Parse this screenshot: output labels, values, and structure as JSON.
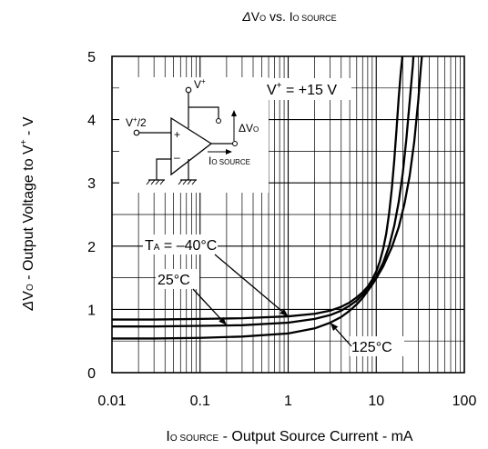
{
  "chart_data": {
    "type": "line",
    "title": {
      "delta": "Δ",
      "v": "V",
      "vsub": "O",
      "vs": " vs. I",
      "isub": "O SOURCE"
    },
    "xlabel": {
      "i": "I",
      "isub": "O SOURCE",
      "rest": " - Output Source Current - mA"
    },
    "ylabel": {
      "delta": "Δ",
      "v": "V",
      "vsub": "O",
      "rest": " - Output Voltage to V",
      "sup": "+",
      "tail": " - V"
    },
    "x_scale": "log",
    "xlim": [
      0.01,
      100
    ],
    "ylim": [
      0,
      5
    ],
    "x_ticks": [
      {
        "value": 0.01,
        "label": "0.01"
      },
      {
        "value": 0.1,
        "label": "0.1"
      },
      {
        "value": 1,
        "label": "1"
      },
      {
        "value": 10,
        "label": "10"
      },
      {
        "value": 100,
        "label": "100"
      }
    ],
    "y_ticks": [
      {
        "value": 0,
        "label": "0"
      },
      {
        "value": 1,
        "label": "1"
      },
      {
        "value": 2,
        "label": "2"
      },
      {
        "value": 3,
        "label": "3"
      },
      {
        "value": 4,
        "label": "4"
      },
      {
        "value": 5,
        "label": "5"
      }
    ],
    "grid": true,
    "series": [
      {
        "name": "T_A = -40°C",
        "x": [
          0.01,
          0.03,
          0.1,
          0.3,
          1,
          2,
          3,
          4,
          5,
          6,
          7,
          8,
          9,
          10,
          11,
          12,
          13,
          14,
          15,
          16,
          17,
          18,
          19,
          20,
          21
        ],
        "y": [
          0.84,
          0.84,
          0.85,
          0.86,
          0.89,
          0.93,
          0.98,
          1.04,
          1.11,
          1.19,
          1.27,
          1.36,
          1.47,
          1.6,
          1.76,
          1.96,
          2.2,
          2.52,
          2.9,
          3.35,
          3.85,
          4.35,
          4.75,
          5.05,
          5.3
        ]
      },
      {
        "name": "25°C",
        "x": [
          0.01,
          0.03,
          0.1,
          0.3,
          1,
          2,
          3,
          4,
          5,
          6,
          7,
          8,
          9,
          10,
          12,
          14,
          16,
          18,
          20,
          22,
          24,
          26,
          27
        ],
        "y": [
          0.73,
          0.73,
          0.74,
          0.75,
          0.79,
          0.85,
          0.91,
          0.98,
          1.06,
          1.14,
          1.23,
          1.32,
          1.42,
          1.52,
          1.74,
          2.0,
          2.32,
          2.7,
          3.15,
          3.7,
          4.3,
          4.85,
          5.2
        ]
      },
      {
        "name": "125°C",
        "x": [
          0.01,
          0.03,
          0.1,
          0.3,
          1,
          2,
          3,
          4,
          5,
          6,
          7,
          8,
          9,
          10,
          12,
          15,
          18,
          21,
          24,
          27,
          30,
          32,
          34
        ],
        "y": [
          0.54,
          0.54,
          0.55,
          0.57,
          0.62,
          0.7,
          0.79,
          0.88,
          0.98,
          1.08,
          1.18,
          1.29,
          1.39,
          1.49,
          1.68,
          1.98,
          2.3,
          2.68,
          3.12,
          3.65,
          4.3,
          4.8,
          5.2
        ]
      }
    ],
    "annotations": {
      "supply": {
        "v": "V",
        "sup": "+",
        "rest": " = +15 V"
      },
      "ta_label": {
        "t": "T",
        "sub": "A",
        "rest": " = –40°C",
        "target_x": 1.0,
        "target_y": 0.89
      },
      "t25_label": {
        "text": "25°C",
        "target_x": 0.2,
        "target_y": 0.75
      },
      "t125_label": {
        "text": "125°C",
        "target_x": 3.0,
        "target_y": 0.79
      }
    },
    "inset": {
      "vplus_label": {
        "v": "V",
        "sup": "+"
      },
      "vhalf_label": {
        "v": "V",
        "sup": "+",
        "rest": "/2"
      },
      "plus_sign": "+",
      "minus_sign": "–",
      "dvo_label": {
        "delta": "Δ",
        "v": "V",
        "sub": "O"
      },
      "isource_label": {
        "i": "I",
        "sub": "O SOURCE"
      }
    }
  }
}
